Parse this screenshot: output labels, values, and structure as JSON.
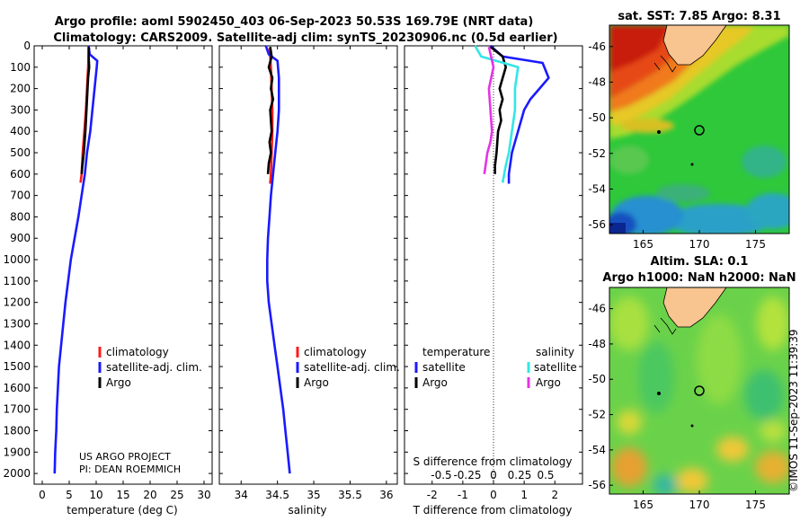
{
  "header": {
    "line1": "Argo profile: aoml 5902450_403 06-Sep-2023 50.53S 169.79E (NRT data)",
    "line2": "Climatology: CARS2009. Satellite-adj clim: synTS_20230906.nc (0.5d earlier)"
  },
  "colors": {
    "climatology": "#ff1a1a",
    "satellite": "#1a1aff",
    "argo": "#000000",
    "sal_sat": "#33e6e6",
    "sal_argo": "#e633e6"
  },
  "depth_axis": {
    "ticks": [
      0,
      100,
      200,
      300,
      400,
      500,
      600,
      700,
      800,
      900,
      1000,
      1100,
      1200,
      1300,
      1400,
      1500,
      1600,
      1700,
      1800,
      1900,
      2000
    ],
    "ylim": [
      0,
      2050
    ]
  },
  "chart_data": [
    {
      "type": "line",
      "name": "temperature-profile",
      "xlabel": "temperature (deg C)",
      "ylabel": "",
      "xlim": [
        -1.5,
        31.5
      ],
      "xticks": [
        0,
        5,
        10,
        15,
        20,
        25,
        30
      ],
      "ylim": [
        0,
        2050
      ],
      "legend": [
        "climatology",
        "satellite-adj. clim.",
        "Argo"
      ],
      "series": [
        {
          "name": "climatology",
          "color": "#ff1a1a",
          "x": [
            8.7,
            8.6,
            8.5,
            8.3,
            8.1,
            7.8,
            7.5,
            7.3,
            7.1
          ],
          "y": [
            10,
            50,
            100,
            200,
            300,
            400,
            500,
            600,
            640
          ]
        },
        {
          "name": "satellite-adj. clim.",
          "color": "#1a1aff",
          "x": [
            8.6,
            8.8,
            10.2,
            10.1,
            9.7,
            9.3,
            8.9,
            8.3,
            7.9,
            7.3,
            6.7,
            6.0,
            5.3,
            4.8,
            4.3,
            3.9,
            3.5,
            3.1,
            2.9,
            2.7,
            2.6,
            2.4,
            2.3
          ],
          "y": [
            0,
            40,
            70,
            100,
            200,
            300,
            400,
            500,
            600,
            700,
            800,
            900,
            1000,
            1100,
            1200,
            1300,
            1400,
            1500,
            1600,
            1700,
            1800,
            1900,
            2000
          ]
        },
        {
          "name": "Argo",
          "color": "#000000",
          "x": [
            8.6,
            8.6,
            8.7,
            8.5,
            8.4,
            8.2,
            8.0,
            7.7,
            7.4,
            7.3
          ],
          "y": [
            5,
            50,
            100,
            150,
            200,
            300,
            400,
            500,
            570,
            600
          ]
        }
      ],
      "note_lines": [
        "US ARGO PROJECT",
        "PI: DEAN ROEMMICH"
      ]
    },
    {
      "type": "line",
      "name": "salinity-profile",
      "xlabel": "salinity",
      "ylabel": "",
      "xlim": [
        33.7,
        36.15
      ],
      "xticks": [
        34,
        34.5,
        35,
        35.5,
        36
      ],
      "xticklabels": [
        "34",
        "34.5",
        "35",
        "35.5",
        "36"
      ],
      "ylim": [
        0,
        2050
      ],
      "legend": [
        "climatology",
        "satellite-adj. clim.",
        "Argo"
      ],
      "series": [
        {
          "name": "climatology",
          "color": "#ff1a1a",
          "x": [
            34.39,
            34.4,
            34.41,
            34.42,
            34.43,
            34.43,
            34.42,
            34.41,
            34.4,
            34.4
          ],
          "y": [
            10,
            50,
            100,
            200,
            300,
            400,
            500,
            600,
            640,
            645
          ]
        },
        {
          "name": "satellite-adj. clim.",
          "color": "#1a1aff",
          "x": [
            34.34,
            34.38,
            34.5,
            34.52,
            34.52,
            34.5,
            34.47,
            34.44,
            34.41,
            34.39,
            34.37,
            34.36,
            34.36,
            34.38,
            34.42,
            34.46,
            34.5,
            34.54,
            34.58,
            34.61,
            34.64,
            34.67
          ],
          "y": [
            0,
            40,
            70,
            150,
            300,
            400,
            500,
            600,
            700,
            800,
            900,
            1000,
            1100,
            1200,
            1300,
            1400,
            1500,
            1600,
            1700,
            1800,
            1900,
            2000
          ]
        },
        {
          "name": "Argo",
          "color": "#000000",
          "x": [
            34.4,
            34.42,
            34.38,
            34.43,
            34.41,
            34.44,
            34.4,
            34.42,
            34.39,
            34.41,
            34.38,
            34.37
          ],
          "y": [
            5,
            50,
            100,
            150,
            200,
            250,
            300,
            400,
            450,
            500,
            550,
            600
          ]
        }
      ]
    },
    {
      "type": "line",
      "name": "difference-profile",
      "xlabel": "T difference from climatology",
      "xlabel_top": "S difference from climatology",
      "xlim": [
        -2.9,
        2.9
      ],
      "xticks": [
        -2,
        -1,
        0,
        1,
        2
      ],
      "xticks_top": [
        "-0.5",
        "-0.25",
        "0",
        "0.25",
        "0.5"
      ],
      "ylim": [
        0,
        2050
      ],
      "legend_left": [
        "temperature",
        "satellite",
        "Argo"
      ],
      "legend_right": [
        "salinity",
        "satellite",
        "Argo"
      ],
      "series": [
        {
          "name": "temperature satellite",
          "color": "#1a1aff",
          "x": [
            -0.1,
            0.3,
            1.6,
            1.8,
            1.5,
            1.2,
            1.0,
            0.8,
            0.6,
            0.5,
            0.5
          ],
          "y": [
            0,
            50,
            80,
            150,
            200,
            250,
            300,
            400,
            500,
            600,
            645
          ]
        },
        {
          "name": "temperature Argo",
          "color": "#000000",
          "x": [
            -0.1,
            0.3,
            0.4,
            0.3,
            0.2,
            0.3,
            0.2,
            0.25,
            0.15,
            0.1,
            0.05,
            0.05
          ],
          "y": [
            5,
            50,
            100,
            150,
            200,
            250,
            300,
            350,
            400,
            500,
            560,
            600
          ]
        },
        {
          "name": "salinity satellite",
          "color": "#33e6e6",
          "x": [
            -0.6,
            -0.4,
            0.8,
            0.7,
            0.7,
            0.6,
            0.5,
            0.4,
            0.35,
            0.3
          ],
          "y": [
            0,
            50,
            100,
            200,
            300,
            400,
            500,
            560,
            600,
            640
          ]
        },
        {
          "name": "salinity Argo",
          "color": "#e633e6",
          "x": [
            -0.15,
            0.0,
            -0.15,
            -0.1,
            -0.05,
            -0.1,
            -0.2,
            -0.25,
            -0.3
          ],
          "y": [
            5,
            100,
            200,
            300,
            400,
            450,
            500,
            550,
            600
          ]
        }
      ]
    },
    {
      "type": "heatmap",
      "name": "sst-map",
      "title": "sat. SST: 7.85 Argo: 8.31",
      "xlim": [
        162,
        178
      ],
      "ylim": [
        -56.5,
        -44.8
      ],
      "xticks": [
        165,
        170,
        175
      ],
      "yticks": [
        -46,
        -48,
        -50,
        -52,
        -54,
        -56
      ]
    },
    {
      "type": "heatmap",
      "name": "sla-map",
      "title_line1": "Altim. SLA: 0.1",
      "title_line2": "Argo h1000: NaN h2000: NaN",
      "xlim": [
        162,
        178
      ],
      "ylim": [
        -56.5,
        -44.8
      ],
      "xticks": [
        165,
        170,
        175
      ],
      "yticks": [
        -46,
        -48,
        -50,
        -52,
        -54,
        -56
      ]
    }
  ],
  "stamp": "©IMOS 11-Sep-2023 11:39:39"
}
